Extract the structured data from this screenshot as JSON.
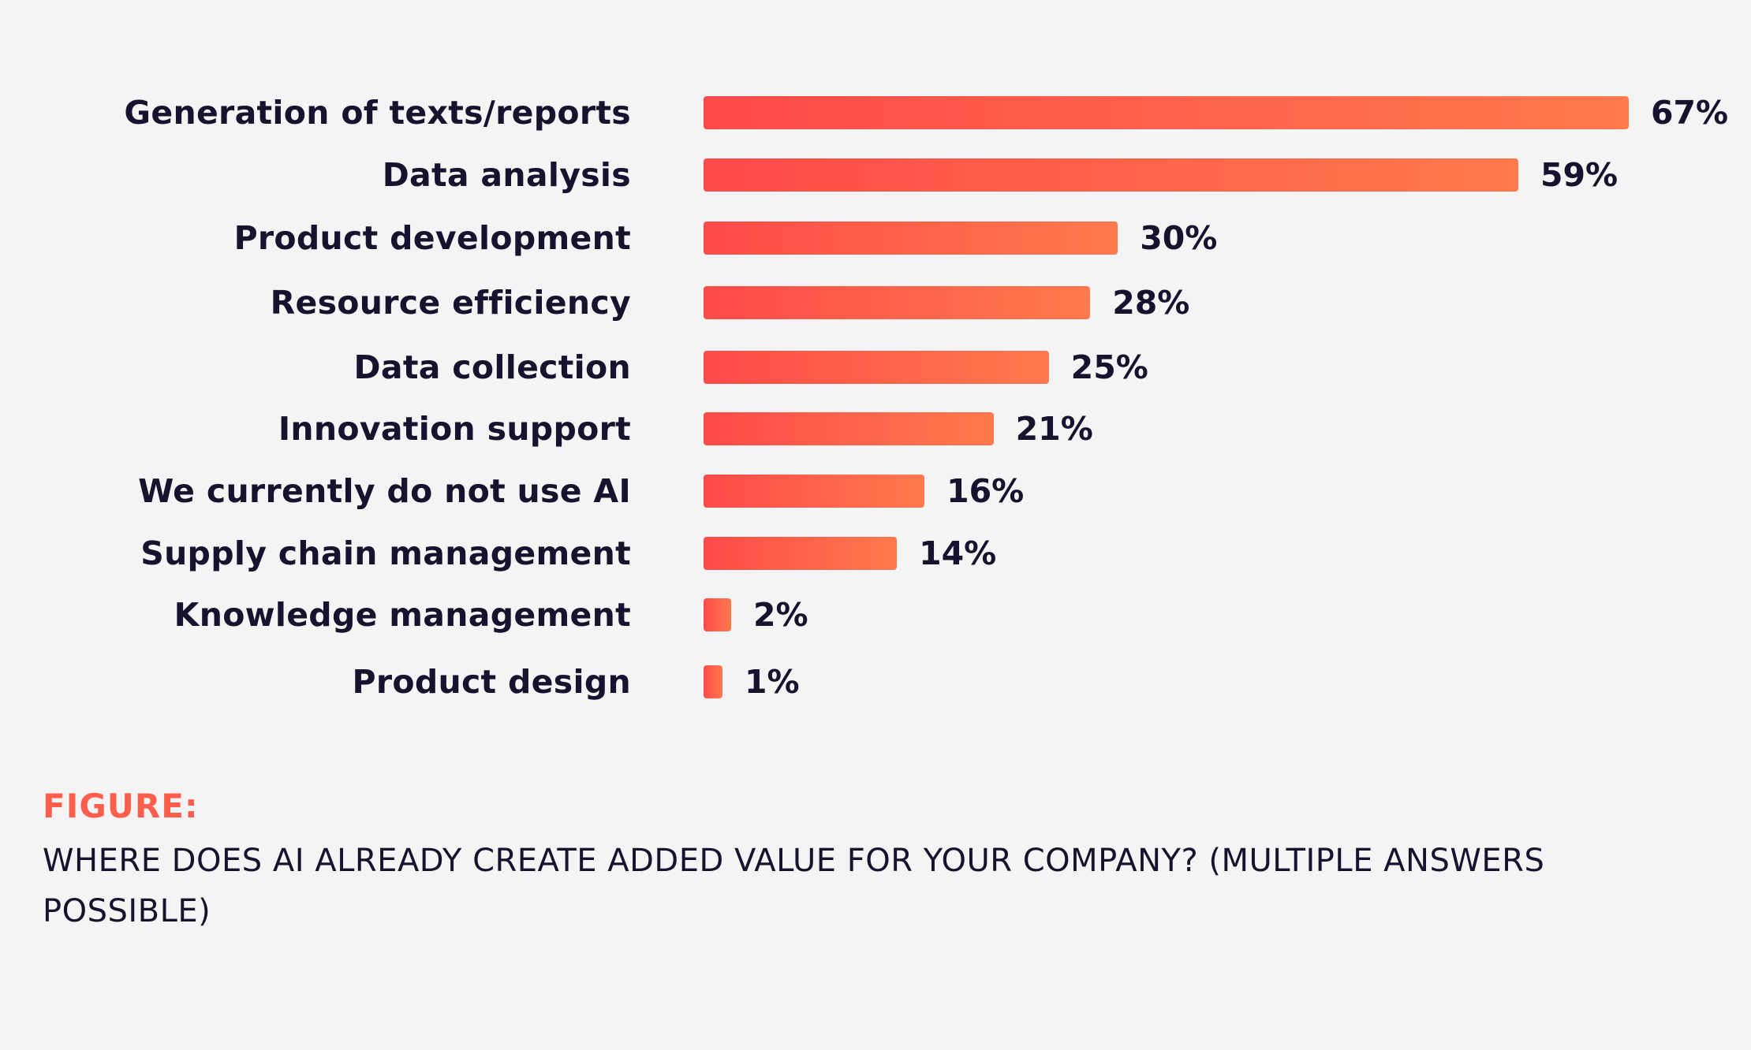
{
  "chart_data": {
    "type": "bar",
    "orientation": "horizontal",
    "categories": [
      "Generation of texts/reports",
      "Data analysis",
      "Product development",
      "Resource efficiency",
      "Data collection",
      "Innovation support",
      "We currently do not use AI",
      "Supply chain management",
      "Knowledge management",
      "Product design"
    ],
    "values": [
      67,
      59,
      30,
      28,
      25,
      21,
      16,
      14,
      2,
      1
    ],
    "value_labels": [
      "67%",
      "59%",
      "30%",
      "28%",
      "25%",
      "21%",
      "16%",
      "14%",
      "2%",
      "1%"
    ],
    "unit": "%",
    "title": "",
    "xlabel": "",
    "ylabel": "",
    "xlim": [
      0,
      67
    ],
    "grid": false,
    "colors": {
      "gradient_start": "#ff4a4a",
      "gradient_end": "#ff7a4d",
      "text": "#15132e",
      "accent": "#ff5e4d"
    }
  },
  "caption": {
    "label": "FIGURE:",
    "text": "WHERE DOES AI ALREADY CREATE ADDED VALUE FOR YOUR COMPANY? (MULTIPLE ANSWERS POSSIBLE)"
  }
}
